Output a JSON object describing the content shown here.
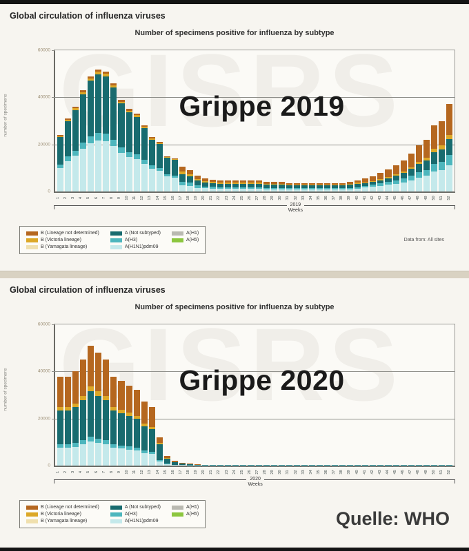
{
  "panels": [
    {
      "title": "Global circulation of influenza viruses",
      "subtitle": "Number of specimens positive for influenza by subtype",
      "overlay": "Grippe 2019",
      "ylabel": "number of specimens",
      "year": "2019",
      "weeks_label": "Weeks",
      "footnote": "Data from: All sites",
      "watermark": "GISRS"
    },
    {
      "title": "Global circulation of influenza viruses",
      "subtitle": "Number of specimens positive for influenza by subtype",
      "overlay": "Grippe 2020",
      "ylabel": "number of specimens",
      "year": "2020",
      "weeks_label": "Weeks",
      "watermark": "GISRS",
      "source": "Quelle: WHO"
    }
  ],
  "legend": {
    "columns": [
      [
        {
          "label": "B (Lineage not determined)",
          "color": "#b5671f"
        },
        {
          "label": "B (Victoria lineage)",
          "color": "#dca827"
        },
        {
          "label": "B (Yamagata lineage)",
          "color": "#f0e0ae"
        }
      ],
      [
        {
          "label": "A (Not subtyped)",
          "color": "#186b6f"
        },
        {
          "label": "A(H3)",
          "color": "#4db6bd"
        },
        {
          "label": "A(H1N1)pdm09",
          "color": "#c4e9eb"
        }
      ],
      [
        {
          "label": "A(H1)",
          "color": "#b9b9b1"
        },
        {
          "label": "A(H5)",
          "color": "#8cc63f"
        }
      ]
    ]
  },
  "chart_data": [
    {
      "type": "bar",
      "stacked": true,
      "title": "Number of specimens positive for influenza by subtype",
      "annotation": "Grippe 2019",
      "xlabel": "Weeks",
      "ylabel": "number of specimens",
      "year": "2019",
      "ylim": [
        0,
        60000
      ],
      "unit": "specimens, values in thousands",
      "grid": true,
      "y_gridlines": [
        40000,
        20000
      ],
      "y_ticks": [
        "60000",
        "40000",
        "20000",
        "0"
      ],
      "x": [
        1,
        2,
        3,
        4,
        5,
        6,
        7,
        8,
        9,
        10,
        11,
        12,
        13,
        14,
        15,
        16,
        17,
        18,
        19,
        20,
        21,
        22,
        23,
        24,
        25,
        26,
        27,
        28,
        29,
        30,
        31,
        32,
        33,
        34,
        35,
        36,
        37,
        38,
        39,
        40,
        41,
        42,
        43,
        44,
        45,
        46,
        47,
        48,
        49,
        50,
        51,
        52
      ],
      "series": [
        {
          "name": "A(H1N1)pdm09",
          "color": "#c4e9eb",
          "values_k": [
            10.1,
            13,
            15.1,
            18.1,
            20.6,
            21.8,
            21.4,
            19.3,
            16.4,
            14.7,
            13.9,
            11.8,
            9.7,
            8.8,
            6.3,
            5.9,
            2.6,
            2.3,
            1.6,
            1.4,
            1.3,
            1.1,
            1.1,
            1.1,
            1.1,
            1.1,
            1.1,
            1,
            1,
            1,
            0.9,
            0.9,
            0.9,
            0.9,
            0.9,
            0.9,
            0.9,
            0.9,
            1,
            1.1,
            1.7,
            2,
            2.4,
            2.9,
            3.3,
            3.9,
            4.8,
            5.9,
            6.6,
            8.4,
            9,
            11.1
          ]
        },
        {
          "name": "A(H3)",
          "color": "#4db6bd",
          "values_k": [
            1.4,
            1.9,
            2.2,
            2.6,
            2.9,
            3.1,
            3.1,
            2.8,
            2.3,
            2.1,
            2,
            1.7,
            1.4,
            1.3,
            0.9,
            0.8,
            1.6,
            1.4,
            1,
            0.8,
            0.8,
            0.7,
            0.7,
            0.7,
            0.7,
            0.7,
            0.7,
            0.6,
            0.6,
            0.6,
            0.5,
            0.5,
            0.5,
            0.5,
            0.5,
            0.5,
            0.5,
            0.5,
            0.6,
            0.7,
            0.7,
            0.8,
            1,
            1.1,
            1.3,
            1.6,
            1.9,
            2.3,
            2.6,
            3.4,
            3.6,
            4.4
          ]
        },
        {
          "name": "A (Not subtyped)",
          "color": "#186b6f",
          "values_k": [
            11.5,
            14.9,
            17.3,
            20.6,
            23.5,
            25,
            24.5,
            22.1,
            18.7,
            16.8,
            15.8,
            13.4,
            11,
            10.1,
            7.2,
            6.7,
            3.2,
            2.7,
            2,
            1.7,
            1.5,
            1.4,
            1.4,
            1.4,
            1.4,
            1.4,
            1.4,
            1.2,
            1.2,
            1.2,
            1.1,
            1.1,
            1.1,
            1.1,
            1.1,
            1.1,
            1.1,
            1.1,
            1.2,
            1.4,
            1,
            1.2,
            1.4,
            1.7,
            2,
            2.3,
            2.9,
            3.5,
            4,
            5,
            5.4,
            6.7
          ]
        },
        {
          "name": "B (Victoria lineage)",
          "color": "#dca827",
          "values_k": [
            0.5,
            0.6,
            0.7,
            0.9,
            1,
            1,
            1,
            0.9,
            0.8,
            0.7,
            0.7,
            0.6,
            0.5,
            0.4,
            0.3,
            0.3,
            1.1,
            0.9,
            0.7,
            0.6,
            0.5,
            0.5,
            0.5,
            0.5,
            0.5,
            0.5,
            0.5,
            0.4,
            0.4,
            0.4,
            0.4,
            0.4,
            0.4,
            0.4,
            0.4,
            0.4,
            0.4,
            0.4,
            0.4,
            0.5,
            0.3,
            0.3,
            0.4,
            0.5,
            0.6,
            0.7,
            0.8,
            1,
            1.1,
            1.4,
            1.5,
            1.9
          ]
        },
        {
          "name": "B (Lineage not determined)",
          "color": "#b5671f",
          "values_k": [
            0.5,
            0.6,
            0.7,
            0.9,
            1,
            1,
            1,
            0.9,
            0.8,
            0.7,
            0.7,
            0.6,
            0.5,
            0.4,
            0.3,
            0.3,
            2.1,
            1.8,
            1.3,
            1.1,
            1,
            0.9,
            0.9,
            0.9,
            0.9,
            0.9,
            0.9,
            0.8,
            0.8,
            0.8,
            0.7,
            0.7,
            0.7,
            0.7,
            0.7,
            0.7,
            0.7,
            0.7,
            0.8,
            0.9,
            1.9,
            2.3,
            2.8,
            3.3,
            3.9,
            4.6,
            5.6,
            6.8,
            7.7,
            9.8,
            10.5,
            13
          ]
        }
      ]
    },
    {
      "type": "bar",
      "stacked": true,
      "title": "Number of specimens positive for influenza by subtype",
      "annotation": "Grippe 2020",
      "xlabel": "Weeks",
      "ylabel": "number of specimens",
      "year": "2020",
      "ylim": [
        0,
        60000
      ],
      "unit": "specimens, values in thousands",
      "grid": true,
      "y_gridlines": [
        40000,
        20000
      ],
      "y_ticks": [
        "60000",
        "40000",
        "20000",
        "0"
      ],
      "x": [
        1,
        2,
        3,
        4,
        5,
        6,
        7,
        8,
        9,
        10,
        11,
        12,
        13,
        14,
        15,
        16,
        17,
        18,
        19,
        20,
        21,
        22,
        23,
        24,
        25,
        26,
        27,
        28,
        29,
        30,
        31,
        32,
        33,
        34,
        35,
        36,
        37,
        38,
        39,
        40,
        41,
        42,
        43,
        44,
        45,
        46,
        47,
        48,
        49,
        50,
        51,
        52
      ],
      "series": [
        {
          "name": "A(H1N1)pdm09",
          "color": "#c4e9eb",
          "values_k": [
            7.6,
            7.6,
            8,
            9,
            10.2,
            9.6,
            9,
            7.6,
            7.2,
            6.8,
            6.4,
            5.4,
            5,
            1.8,
            0.6,
            0.3,
            0.2,
            0.1,
            0.1,
            0.1,
            0.05,
            0.05,
            0.05,
            0.05,
            0.05,
            0.05,
            0.05,
            0.05,
            0.05,
            0.05,
            0.05,
            0.05,
            0.05,
            0.05,
            0.05,
            0.05,
            0.05,
            0.05,
            0.05,
            0.05,
            0.05,
            0.05,
            0.05,
            0.05,
            0.05,
            0.05,
            0.05,
            0.05,
            0.05,
            0.05,
            0.05,
            0.05
          ]
        },
        {
          "name": "A(H3)",
          "color": "#4db6bd",
          "values_k": [
            1.5,
            1.5,
            1.6,
            1.8,
            2,
            1.9,
            1.8,
            1.5,
            1.4,
            1.4,
            1.3,
            1.1,
            1,
            0.6,
            0.2,
            0.1,
            0.05,
            0,
            0,
            0,
            0,
            0,
            0,
            0,
            0,
            0,
            0,
            0,
            0,
            0,
            0,
            0,
            0,
            0,
            0,
            0,
            0,
            0,
            0,
            0,
            0,
            0,
            0,
            0,
            0,
            0,
            0,
            0,
            0,
            0,
            0,
            0
          ]
        },
        {
          "name": "A (Not subtyped)",
          "color": "#186b6f",
          "values_k": [
            14.4,
            14.4,
            15.2,
            17.1,
            19.4,
            18.2,
            17.1,
            14.4,
            13.7,
            12.9,
            12.2,
            10.3,
            9.5,
            6.6,
            2.2,
            1.1,
            0.7,
            0.5,
            0.3,
            0.25,
            0.15,
            0.15,
            0.15,
            0.15,
            0.15,
            0.15,
            0.15,
            0.15,
            0.15,
            0.15,
            0.15,
            0.15,
            0.15,
            0.15,
            0.15,
            0.15,
            0.15,
            0.15,
            0.15,
            0.15,
            0.15,
            0.15,
            0.15,
            0.15,
            0.15,
            0.15,
            0.15,
            0.15,
            0.15,
            0.15,
            0.15,
            0.15
          ]
        },
        {
          "name": "B (Victoria lineage)",
          "color": "#dca827",
          "values_k": [
            1.5,
            1.5,
            1.6,
            1.8,
            2,
            1.9,
            1.8,
            1.5,
            1.4,
            1.4,
            1.3,
            1.1,
            1,
            0.6,
            0.2,
            0.1,
            0.05,
            0,
            0,
            0,
            0,
            0,
            0,
            0,
            0,
            0,
            0,
            0,
            0,
            0,
            0,
            0,
            0,
            0,
            0,
            0,
            0,
            0,
            0,
            0,
            0,
            0,
            0,
            0,
            0,
            0,
            0,
            0,
            0,
            0,
            0,
            0
          ]
        },
        {
          "name": "B (Lineage not determined)",
          "color": "#b5671f",
          "values_k": [
            12.9,
            12.9,
            13.6,
            15.3,
            17.3,
            16.3,
            15.3,
            12.9,
            12.2,
            11.6,
            10.9,
            9.2,
            8.5,
            2.4,
            0.8,
            0.4,
            0.25,
            0.2,
            0.1,
            0.1,
            0.1,
            0.1,
            0.1,
            0.1,
            0.1,
            0.1,
            0.1,
            0.1,
            0.1,
            0.1,
            0.1,
            0.1,
            0.1,
            0.1,
            0.1,
            0.1,
            0.1,
            0.1,
            0.1,
            0.1,
            0.1,
            0.1,
            0.1,
            0.1,
            0.1,
            0.1,
            0.1,
            0.1,
            0.1,
            0.1,
            0.1,
            0.1
          ]
        }
      ]
    }
  ]
}
